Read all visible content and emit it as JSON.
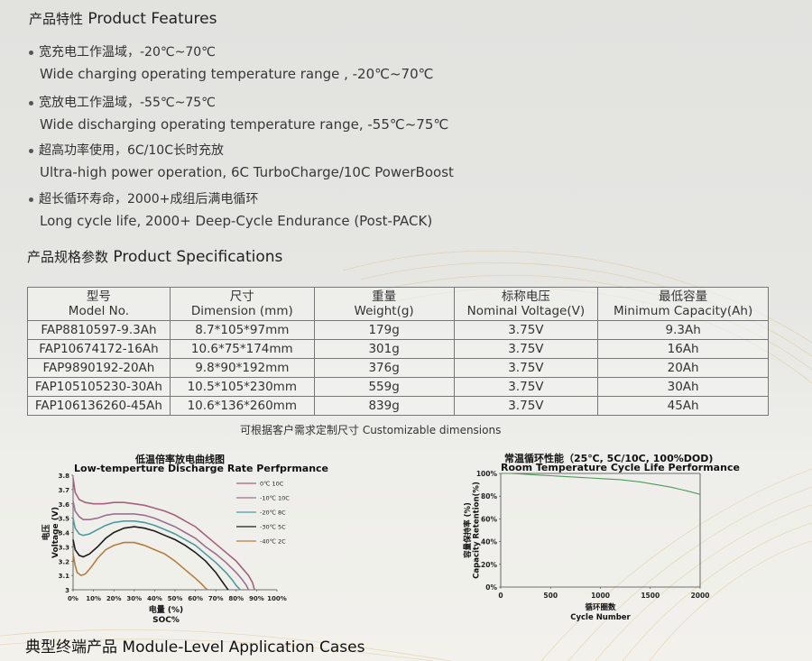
{
  "features": {
    "title_cn": "产品特性",
    "title_en": "Product Features",
    "items": [
      {
        "cn": "宽充电工作温域，-20℃~70℃",
        "en": "Wide charging  operating temperature range , -20℃~70℃"
      },
      {
        "cn": "宽放电工作温域，-55℃~75℃",
        "en": "Wide discharging operating temperature range, -55℃~75℃"
      },
      {
        "cn": "超高功率使用，6C/10C长时充放",
        "en": "Ultra-high power operation, 6C TurboCharge/10C PowerBoost"
      },
      {
        "cn": "超长循环寿命，2000+成组后满电循环",
        "en": "Long cycle life, 2000+ Deep-Cycle Endurance (Post-PACK)"
      }
    ]
  },
  "specs": {
    "title_cn": "产品规格参数",
    "title_en": "Product Specifications",
    "headers": [
      {
        "cn": "型号",
        "en": "Model No."
      },
      {
        "cn": "尺寸",
        "en": "Dimension (mm)"
      },
      {
        "cn": "重量",
        "en": "Weight(g)"
      },
      {
        "cn": "标称电压",
        "en": "Nominal Voltage(V)"
      },
      {
        "cn": "最低容量",
        "en": "Minimum Capacity(Ah)"
      }
    ],
    "rows": [
      [
        "FAP8810597-9.3Ah",
        "8.7*105*97mm",
        "179g",
        "3.75V",
        "9.3Ah"
      ],
      [
        "FAP10674172-16Ah",
        "10.6*75*174mm",
        "301g",
        "3.75V",
        "16Ah"
      ],
      [
        "FAP9890192-20Ah",
        "9.8*90*192mm",
        "376g",
        "3.75V",
        "20Ah"
      ],
      [
        "FAP105105230-30Ah",
        "10.5*105*230mm",
        "559g",
        "3.75V",
        "30Ah"
      ],
      [
        "FAP106136260-45Ah",
        "10.6*136*260mm",
        "839g",
        "3.75V",
        "45Ah"
      ]
    ],
    "note": "可根据客户需求定制尺寸    Customizable dimensions"
  },
  "chart_data": [
    {
      "type": "line",
      "title_cn": "低温倍率放电曲线图",
      "title": "Low-temperture Discharge Rate Perfprmance",
      "ylabel_cn": "电压",
      "ylabel": "Voltage (V)",
      "xlabel_cn": "电量 (%)",
      "xlabel": "SOC%",
      "x_ticks": [
        "0%",
        "10%",
        "20%",
        "30%",
        "40%",
        "50%",
        "60%",
        "70%",
        "80%",
        "90%",
        "100%"
      ],
      "y_ticks": [
        "3",
        "3.1",
        "3.2",
        "3.3",
        "3.4",
        "3.5",
        "3.6",
        "3.7",
        "3.8"
      ],
      "xlim": [
        0,
        100
      ],
      "ylim": [
        3,
        3.8
      ],
      "legend_position": "top-right",
      "series": [
        {
          "name": "0℃ 10C",
          "color": "#a5607e",
          "x": [
            0,
            1,
            3,
            6,
            10,
            15,
            20,
            25,
            30,
            35,
            40,
            45,
            50,
            55,
            60,
            65,
            70,
            75,
            80,
            83,
            86,
            88,
            89
          ],
          "y": [
            3.78,
            3.68,
            3.63,
            3.61,
            3.6,
            3.6,
            3.61,
            3.61,
            3.6,
            3.59,
            3.57,
            3.55,
            3.52,
            3.48,
            3.44,
            3.38,
            3.32,
            3.26,
            3.2,
            3.15,
            3.1,
            3.05,
            3.0
          ]
        },
        {
          "name": "-10℃ 10C",
          "color": "#9a7090",
          "x": [
            0,
            1,
            3,
            5,
            8,
            12,
            16,
            20,
            25,
            30,
            35,
            40,
            45,
            50,
            55,
            60,
            65,
            70,
            75,
            80,
            83,
            85,
            86
          ],
          "y": [
            3.62,
            3.55,
            3.51,
            3.49,
            3.49,
            3.5,
            3.52,
            3.53,
            3.53,
            3.53,
            3.52,
            3.5,
            3.47,
            3.44,
            3.4,
            3.36,
            3.3,
            3.25,
            3.19,
            3.12,
            3.07,
            3.03,
            3.0
          ]
        },
        {
          "name": "-20℃ 8C",
          "color": "#4c9aa0",
          "x": [
            0,
            1,
            3,
            5,
            8,
            12,
            16,
            20,
            25,
            30,
            35,
            40,
            45,
            50,
            55,
            60,
            65,
            70,
            75,
            78,
            80,
            82
          ],
          "y": [
            3.5,
            3.43,
            3.39,
            3.38,
            3.39,
            3.42,
            3.45,
            3.47,
            3.48,
            3.48,
            3.47,
            3.45,
            3.42,
            3.39,
            3.35,
            3.31,
            3.25,
            3.19,
            3.12,
            3.07,
            3.03,
            3.0
          ]
        },
        {
          "name": "-30℃ 5C",
          "color": "#1c1c1c",
          "x": [
            0,
            1,
            3,
            5,
            8,
            12,
            16,
            20,
            25,
            30,
            35,
            40,
            45,
            50,
            55,
            60,
            65,
            70,
            73,
            75,
            76
          ],
          "y": [
            3.35,
            3.28,
            3.24,
            3.23,
            3.25,
            3.3,
            3.36,
            3.4,
            3.43,
            3.44,
            3.43,
            3.41,
            3.38,
            3.35,
            3.31,
            3.26,
            3.2,
            3.12,
            3.06,
            3.02,
            3.0
          ]
        },
        {
          "name": "-40℃ 2C",
          "color": "#b57d3c",
          "x": [
            0,
            1,
            2,
            4,
            6,
            9,
            12,
            16,
            20,
            25,
            30,
            35,
            40,
            45,
            50,
            55,
            60,
            63,
            65,
            66
          ],
          "y": [
            3.25,
            3.17,
            3.12,
            3.1,
            3.11,
            3.16,
            3.22,
            3.28,
            3.31,
            3.33,
            3.33,
            3.31,
            3.28,
            3.25,
            3.2,
            3.14,
            3.08,
            3.04,
            3.01,
            3.0
          ]
        }
      ]
    },
    {
      "type": "line",
      "title_cn": "常温循环性能（25℃, 5C/10C, 100%DOD)",
      "title": "Room Temperature Cycle Life Performance",
      "ylabel_cn": "容量保持率 (%)",
      "ylabel": "Capacity Retention(%)",
      "xlabel_cn": "循环圈数",
      "xlabel": "Cycle Number",
      "x_ticks": [
        "0",
        "500",
        "1000",
        "1500",
        "2000"
      ],
      "y_ticks": [
        "0%",
        "20%",
        "40%",
        "60%",
        "80%",
        "100%"
      ],
      "xlim": [
        0,
        2000
      ],
      "ylim": [
        0,
        100
      ],
      "series": [
        {
          "name": "",
          "color": "#4f9a5c",
          "x": [
            0,
            100,
            200,
            300,
            400,
            500,
            600,
            700,
            800,
            900,
            1000,
            1100,
            1200,
            1300,
            1400,
            1500,
            1600,
            1700,
            1800,
            1900,
            2000
          ],
          "y": [
            100,
            100,
            99.5,
            99,
            98.5,
            98,
            97.5,
            97,
            96.5,
            96,
            95.5,
            95,
            94.5,
            93.5,
            92.5,
            91,
            89.5,
            88,
            86,
            84,
            81.5
          ]
        }
      ]
    }
  ],
  "applications": {
    "title_cn": "典型终端产品",
    "title_en": "Module-Level Application Cases"
  }
}
